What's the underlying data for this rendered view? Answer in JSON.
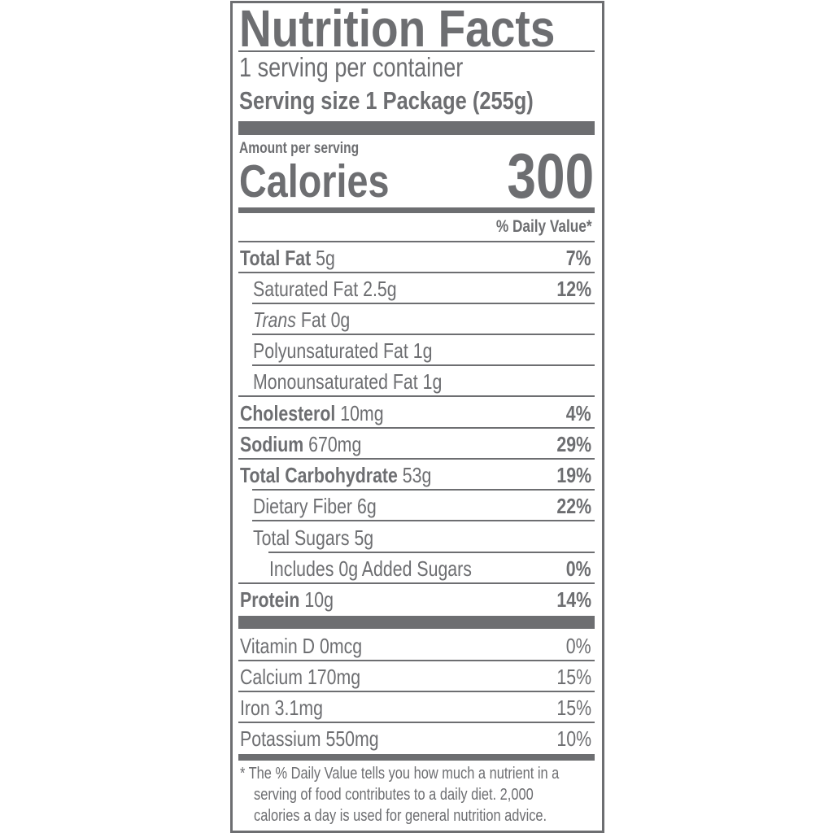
{
  "title": "Nutrition Facts",
  "servings_per_container": "1 serving per container",
  "serving_size_label": "Serving size",
  "serving_size_value": "1 Package (255g)",
  "amount_per_serving": "Amount per serving",
  "calories_label": "Calories",
  "calories_value": "300",
  "daily_value_header": "% Daily Value*",
  "nutrients": [
    {
      "name": "Total Fat",
      "amount": "5g",
      "dv": "7%"
    },
    {
      "name": "Saturated Fat",
      "amount": "2.5g",
      "dv": "12%"
    },
    {
      "name": "Trans",
      "amount": "Fat 0g",
      "dv": ""
    },
    {
      "name": "Polyunsaturated Fat",
      "amount": "1g",
      "dv": ""
    },
    {
      "name": "Monounsaturated Fat",
      "amount": "1g",
      "dv": ""
    },
    {
      "name": "Cholesterol",
      "amount": "10mg",
      "dv": "4%"
    },
    {
      "name": "Sodium",
      "amount": "670mg",
      "dv": "29%"
    },
    {
      "name": "Total Carbohydrate",
      "amount": "53g",
      "dv": "19%"
    },
    {
      "name": "Dietary Fiber",
      "amount": "6g",
      "dv": "22%"
    },
    {
      "name": "Total Sugars",
      "amount": "5g",
      "dv": ""
    },
    {
      "name": "Includes 0g Added Sugars",
      "amount": "",
      "dv": "0%"
    },
    {
      "name": "Protein",
      "amount": "10g",
      "dv": "14%"
    }
  ],
  "vitamins": [
    {
      "name": "Vitamin D",
      "amount": "0mcg",
      "dv": "0%"
    },
    {
      "name": "Calcium",
      "amount": "170mg",
      "dv": "15%"
    },
    {
      "name": "Iron",
      "amount": "3.1mg",
      "dv": "15%"
    },
    {
      "name": "Potassium",
      "amount": "550mg",
      "dv": "10%"
    }
  ],
  "footnote_line1": "* The % Daily Value tells you how much a nutrient in a",
  "footnote_line2": "serving of food contributes to a daily diet. 2,000",
  "footnote_line3": "calories a day is used for general nutrition advice.",
  "colors": {
    "ink": "#6d6e71",
    "background": "#ffffff"
  }
}
